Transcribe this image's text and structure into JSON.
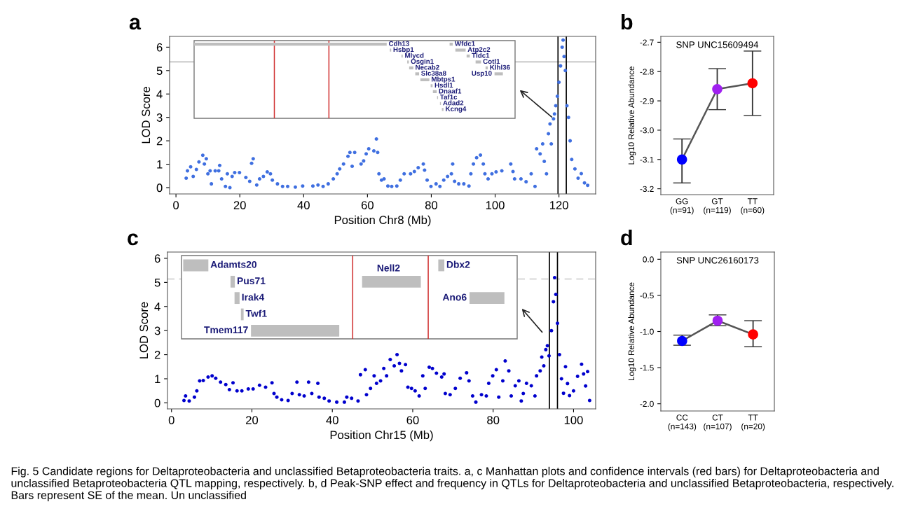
{
  "chart_data": [
    {
      "type": "scatter",
      "title": "a",
      "xlabel": "Position Chr8 (Mb)",
      "ylabel": "LOD Score",
      "marker": "circle",
      "xlim": [
        -2,
        131.5
      ],
      "xticks": [
        0,
        20,
        40,
        60,
        80,
        100,
        120
      ],
      "ylim": [
        -0.27,
        6.46
      ],
      "yticks": [
        0,
        1,
        2,
        3,
        4,
        5,
        6
      ],
      "ref_lines": [
        {
          "axis": "y",
          "value": 5.37,
          "color": "#c0c0c0",
          "line_style": "solid"
        },
        {
          "axis": "x",
          "value": 119.7,
          "color": "#000000",
          "line_style": "solid"
        },
        {
          "axis": "x",
          "value": 122.3,
          "color": "#000000",
          "line_style": "solid"
        }
      ],
      "annotations": [
        "Fig. 5 Candidate regions for Deltaproteobacteria and unclassified Betaproteobacteria traits. a, c Manhattan plots and confidence intervals (red bars) for Deltaproteobacteria and unclassified Betaproteobacteria QTL mapping, respectively. b, d Peak-SNP effect and frequency in QTLs for Deltaproteobacteria and unclassified Betaproteobacteria, respectively. Bars represent SE of the mean. Un unclassified"
      ],
      "series": [
        {
          "color": "#3f6fe0",
          "x": [
            3.2,
            3.6,
            4.6,
            5.4,
            6.4,
            7.2,
            8.4,
            8.9,
            9.5,
            10.0,
            10.7,
            11.1,
            12.3,
            13.4,
            13.7,
            14.3,
            15.5,
            16.1,
            16.9,
            17.6,
            18.4,
            19.9,
            21.9,
            23.1,
            23.7,
            24.2,
            25.3,
            26.2,
            27.4,
            28.6,
            29.6,
            30.2,
            31.8,
            33.4,
            35.0,
            37.4,
            39.7,
            42.9,
            44.5,
            46.1,
            47.7,
            49.3,
            50.5,
            51.3,
            52.5,
            53.9,
            54.5,
            55.2,
            56.0,
            58.0,
            58.8,
            59.6,
            60.4,
            62.0,
            62.8,
            63.2,
            63.6,
            64.4,
            65.2,
            66.4,
            67.6,
            69.2,
            70.3,
            71.5,
            73.5,
            74.7,
            75.9,
            77.5,
            77.9,
            78.7,
            79.9,
            81.5,
            82.7,
            83.9,
            85.1,
            86.3,
            86.7,
            87.3,
            88.6,
            90.2,
            91.8,
            92.4,
            93.2,
            94.2,
            95.4,
            96.3,
            96.8,
            97.8,
            99.0,
            100.3,
            102.1,
            104.9,
            105.6,
            106.1,
            108.1,
            109.7,
            111.3,
            112.5,
            113.0,
            114.1,
            114.9,
            115.4,
            116.1,
            116.7,
            117.2,
            117.6,
            118.3,
            118.6,
            119.0,
            119.5,
            120.0,
            120.5,
            121.0,
            121.3,
            121.6,
            122.0,
            122.5,
            123.0,
            123.5,
            124.0,
            125.0,
            126.0,
            127.0,
            128.0,
            129.0
          ],
          "values": [
            0.4,
            0.72,
            0.89,
            0.48,
            0.78,
            1.1,
            1.38,
            1.01,
            1.23,
            0.59,
            0.72,
            0.16,
            0.72,
            0.72,
            0.95,
            0.37,
            0.05,
            0.59,
            0.0,
            0.48,
            0.64,
            0.64,
            0.43,
            0.27,
            1.04,
            1.23,
            0.11,
            0.37,
            0.48,
            0.67,
            0.59,
            0.32,
            0.16,
            0.05,
            0.05,
            0.02,
            0.07,
            0.07,
            0.11,
            0.05,
            0.16,
            0.37,
            0.59,
            0.8,
            1.01,
            1.34,
            1.5,
            0.91,
            1.5,
            1.01,
            1.14,
            1.44,
            1.66,
            1.57,
            2.08,
            1.5,
            0.59,
            0.32,
            0.37,
            0.07,
            0.05,
            0.07,
            0.32,
            0.59,
            0.59,
            0.69,
            0.85,
            1.01,
            0.75,
            0.32,
            0.05,
            0.16,
            0.05,
            0.32,
            0.48,
            0.59,
            1.01,
            0.27,
            0.16,
            0.16,
            0.07,
            0.59,
            1.01,
            1.28,
            1.39,
            1.01,
            0.59,
            0.37,
            0.59,
            0.67,
            0.72,
            1.01,
            0.69,
            0.37,
            0.37,
            0.25,
            0.59,
            0.05,
            1.66,
            1.44,
            1.87,
            1.12,
            0.59,
            2.3,
            2.72,
            1.87,
            2.94,
            3.15,
            3.5,
            3.9,
            4.5,
            5.2,
            6.0,
            6.3,
            5.6,
            5.0,
            3.5,
            3.0,
            2.0,
            1.2,
            0.8,
            0.4,
            0.6,
            0.2,
            0.1
          ]
        }
      ]
    },
    {
      "type": "other",
      "annotations": [
        "Cdh13",
        "Hsbp1",
        "Mlycd",
        "Osgin1",
        "Necab2",
        "Slc38a8",
        "Mbtps1",
        "Hsdl1",
        "Dnaaf1",
        "Taf1c",
        "Adad2",
        "Kcng4",
        "Wfdc1",
        "Atp2c2",
        "Tldc1",
        "Cotl1",
        "Klhl36",
        "Usp10"
      ]
    },
    {
      "type": "line",
      "title": "b",
      "subtitle": "SNP UNC15609494",
      "ylabel": "Log10 Relative Abundance",
      "marker": "circle",
      "categories": [
        "GG\n(n=91)",
        "GT\n(n=119)",
        "TT\n(n=60)"
      ],
      "ylim": [
        -3.22,
        -2.68
      ],
      "yticks": [
        -3.2,
        -3.1,
        {
          "value": -3.0,
          "label": "-3.0"
        },
        -2.9,
        -2.8,
        -2.7
      ],
      "series": [
        {
          "color": "#555555",
          "colors": [
            "#0000ff",
            "#a020f0",
            "#ff0000"
          ],
          "values": [
            -3.1,
            -2.86,
            -2.84
          ],
          "errors": [
            [
              -3.18,
              -3.03
            ],
            [
              -2.93,
              -2.79
            ],
            [
              -2.95,
              -2.73
            ]
          ]
        }
      ]
    },
    {
      "type": "scatter",
      "title": "c",
      "xlabel": "Position Chr15 (Mb)",
      "ylabel": "LOD Score",
      "marker": "circle",
      "xlim": [
        -1,
        105.5
      ],
      "xticks": [
        0,
        20,
        40,
        60,
        80,
        100
      ],
      "ylim": [
        -0.25,
        6.26
      ],
      "yticks": [
        0,
        1,
        2,
        3,
        4,
        5,
        6
      ],
      "ref_lines": [
        {
          "axis": "y",
          "value": 5.14,
          "color": "#c8c8c8",
          "line_style": "dashed"
        },
        {
          "axis": "x",
          "value": 94.0,
          "color": "#000000",
          "line_style": "solid"
        },
        {
          "axis": "x",
          "value": 96.0,
          "color": "#000000",
          "line_style": "solid"
        }
      ],
      "series": [
        {
          "color": "#0000cd",
          "x": [
            3.1,
            3.5,
            4.4,
            5.7,
            6.3,
            7.0,
            7.9,
            9.1,
            10.1,
            11.0,
            12.2,
            13.5,
            14.4,
            15.3,
            16.3,
            17.5,
            19.1,
            20.3,
            21.9,
            23.4,
            25.0,
            25.5,
            26.2,
            27.4,
            29.0,
            30.0,
            31.2,
            31.8,
            33.0,
            34.1,
            34.9,
            36.4,
            36.7,
            38.0,
            39.2,
            41.1,
            43.0,
            43.6,
            44.8,
            46.4,
            47.0,
            48.2,
            48.5,
            49.5,
            50.4,
            51.0,
            52.0,
            52.8,
            53.5,
            54.4,
            55.4,
            56.1,
            56.7,
            57.2,
            58.2,
            58.8,
            59.7,
            60.6,
            61.6,
            62.5,
            63.1,
            64.1,
            64.9,
            65.9,
            67.2,
            67.8,
            68.1,
            69.3,
            70.6,
            71.8,
            73.4,
            74.0,
            74.9,
            75.7,
            77.1,
            78.3,
            78.9,
            79.9,
            80.8,
            81.4,
            82.4,
            83.0,
            83.9,
            84.5,
            85.5,
            86.4,
            87.0,
            87.5,
            88.3,
            89.5,
            90.4,
            90.8,
            91.7,
            92.1,
            92.6,
            93.1,
            93.5,
            93.9,
            94.5,
            95.0,
            95.3,
            95.6,
            96.0,
            96.5,
            97.0,
            97.5,
            98.0,
            98.5,
            99.0,
            100.0,
            101.0,
            102.0,
            102.5,
            103.0,
            103.5,
            104.0
          ],
          "values": [
            0.1,
            0.29,
            0.08,
            0.24,
            0.5,
            0.91,
            0.93,
            1.07,
            1.12,
            1.02,
            0.86,
            0.76,
            0.55,
            0.83,
            0.5,
            0.5,
            0.58,
            0.58,
            0.73,
            0.65,
            0.83,
            0.39,
            0.24,
            0.13,
            0.1,
            0.39,
            0.86,
            0.34,
            0.29,
            0.86,
            0.39,
            0.81,
            0.24,
            0.19,
            0.08,
            0.03,
            0.03,
            0.24,
            0.19,
            0.08,
            1.17,
            1.38,
            0.34,
            0.6,
            1.12,
            0.81,
            0.91,
            1.43,
            1.12,
            1.8,
            1.54,
            2.0,
            1.64,
            1.33,
            1.59,
            0.65,
            0.6,
            0.5,
            0.29,
            1.12,
            0.6,
            1.48,
            1.43,
            1.23,
            1.07,
            1.2,
            0.39,
            0.34,
            0.6,
            1.02,
            1.25,
            0.91,
            0.29,
            0.03,
            0.34,
            0.29,
            0.81,
            1.12,
            1.38,
            0.24,
            0.91,
            1.74,
            1.33,
            0.29,
            0.71,
            0.91,
            0.08,
            0.39,
            0.81,
            0.71,
            0.29,
            1.12,
            1.33,
            1.9,
            1.54,
            2.21,
            2.37,
            1.95,
            3.0,
            4.2,
            5.2,
            4.5,
            3.3,
            2.0,
            1.0,
            0.4,
            1.5,
            0.8,
            0.3,
            0.5,
            1.1,
            1.6,
            1.2,
            0.7,
            1.3,
            0.1
          ]
        }
      ]
    },
    {
      "type": "other",
      "annotations": [
        "Adamts20",
        "Pus71",
        "Irak4",
        "Twf1",
        "Tmem117",
        "Dbx2",
        "Nell2",
        "Ano6"
      ]
    },
    {
      "type": "line",
      "title": "d",
      "subtitle": "SNP UNC26160173",
      "ylabel": "Log10 Relative Abundance",
      "marker": "circle",
      "categories": [
        "CC\n(n=143)",
        "CT\n(n=107)",
        "TT\n(n=20)"
      ],
      "ylim": [
        -2.1,
        0.1
      ],
      "yticks": [
        {
          "value": -2.0,
          "label": "-2.0"
        },
        -1.5,
        {
          "value": -1.0,
          "label": "-1.0"
        },
        -0.5,
        {
          "value": 0.0,
          "label": "0.0"
        }
      ],
      "series": [
        {
          "color": "#555555",
          "colors": [
            "#0000ff",
            "#a020f0",
            "#ff0000"
          ],
          "values": [
            -1.13,
            -0.85,
            -1.04
          ],
          "errors": [
            [
              -1.19,
              -1.05
            ],
            [
              -0.92,
              -0.77
            ],
            [
              -1.21,
              -0.85
            ]
          ]
        }
      ]
    }
  ]
}
